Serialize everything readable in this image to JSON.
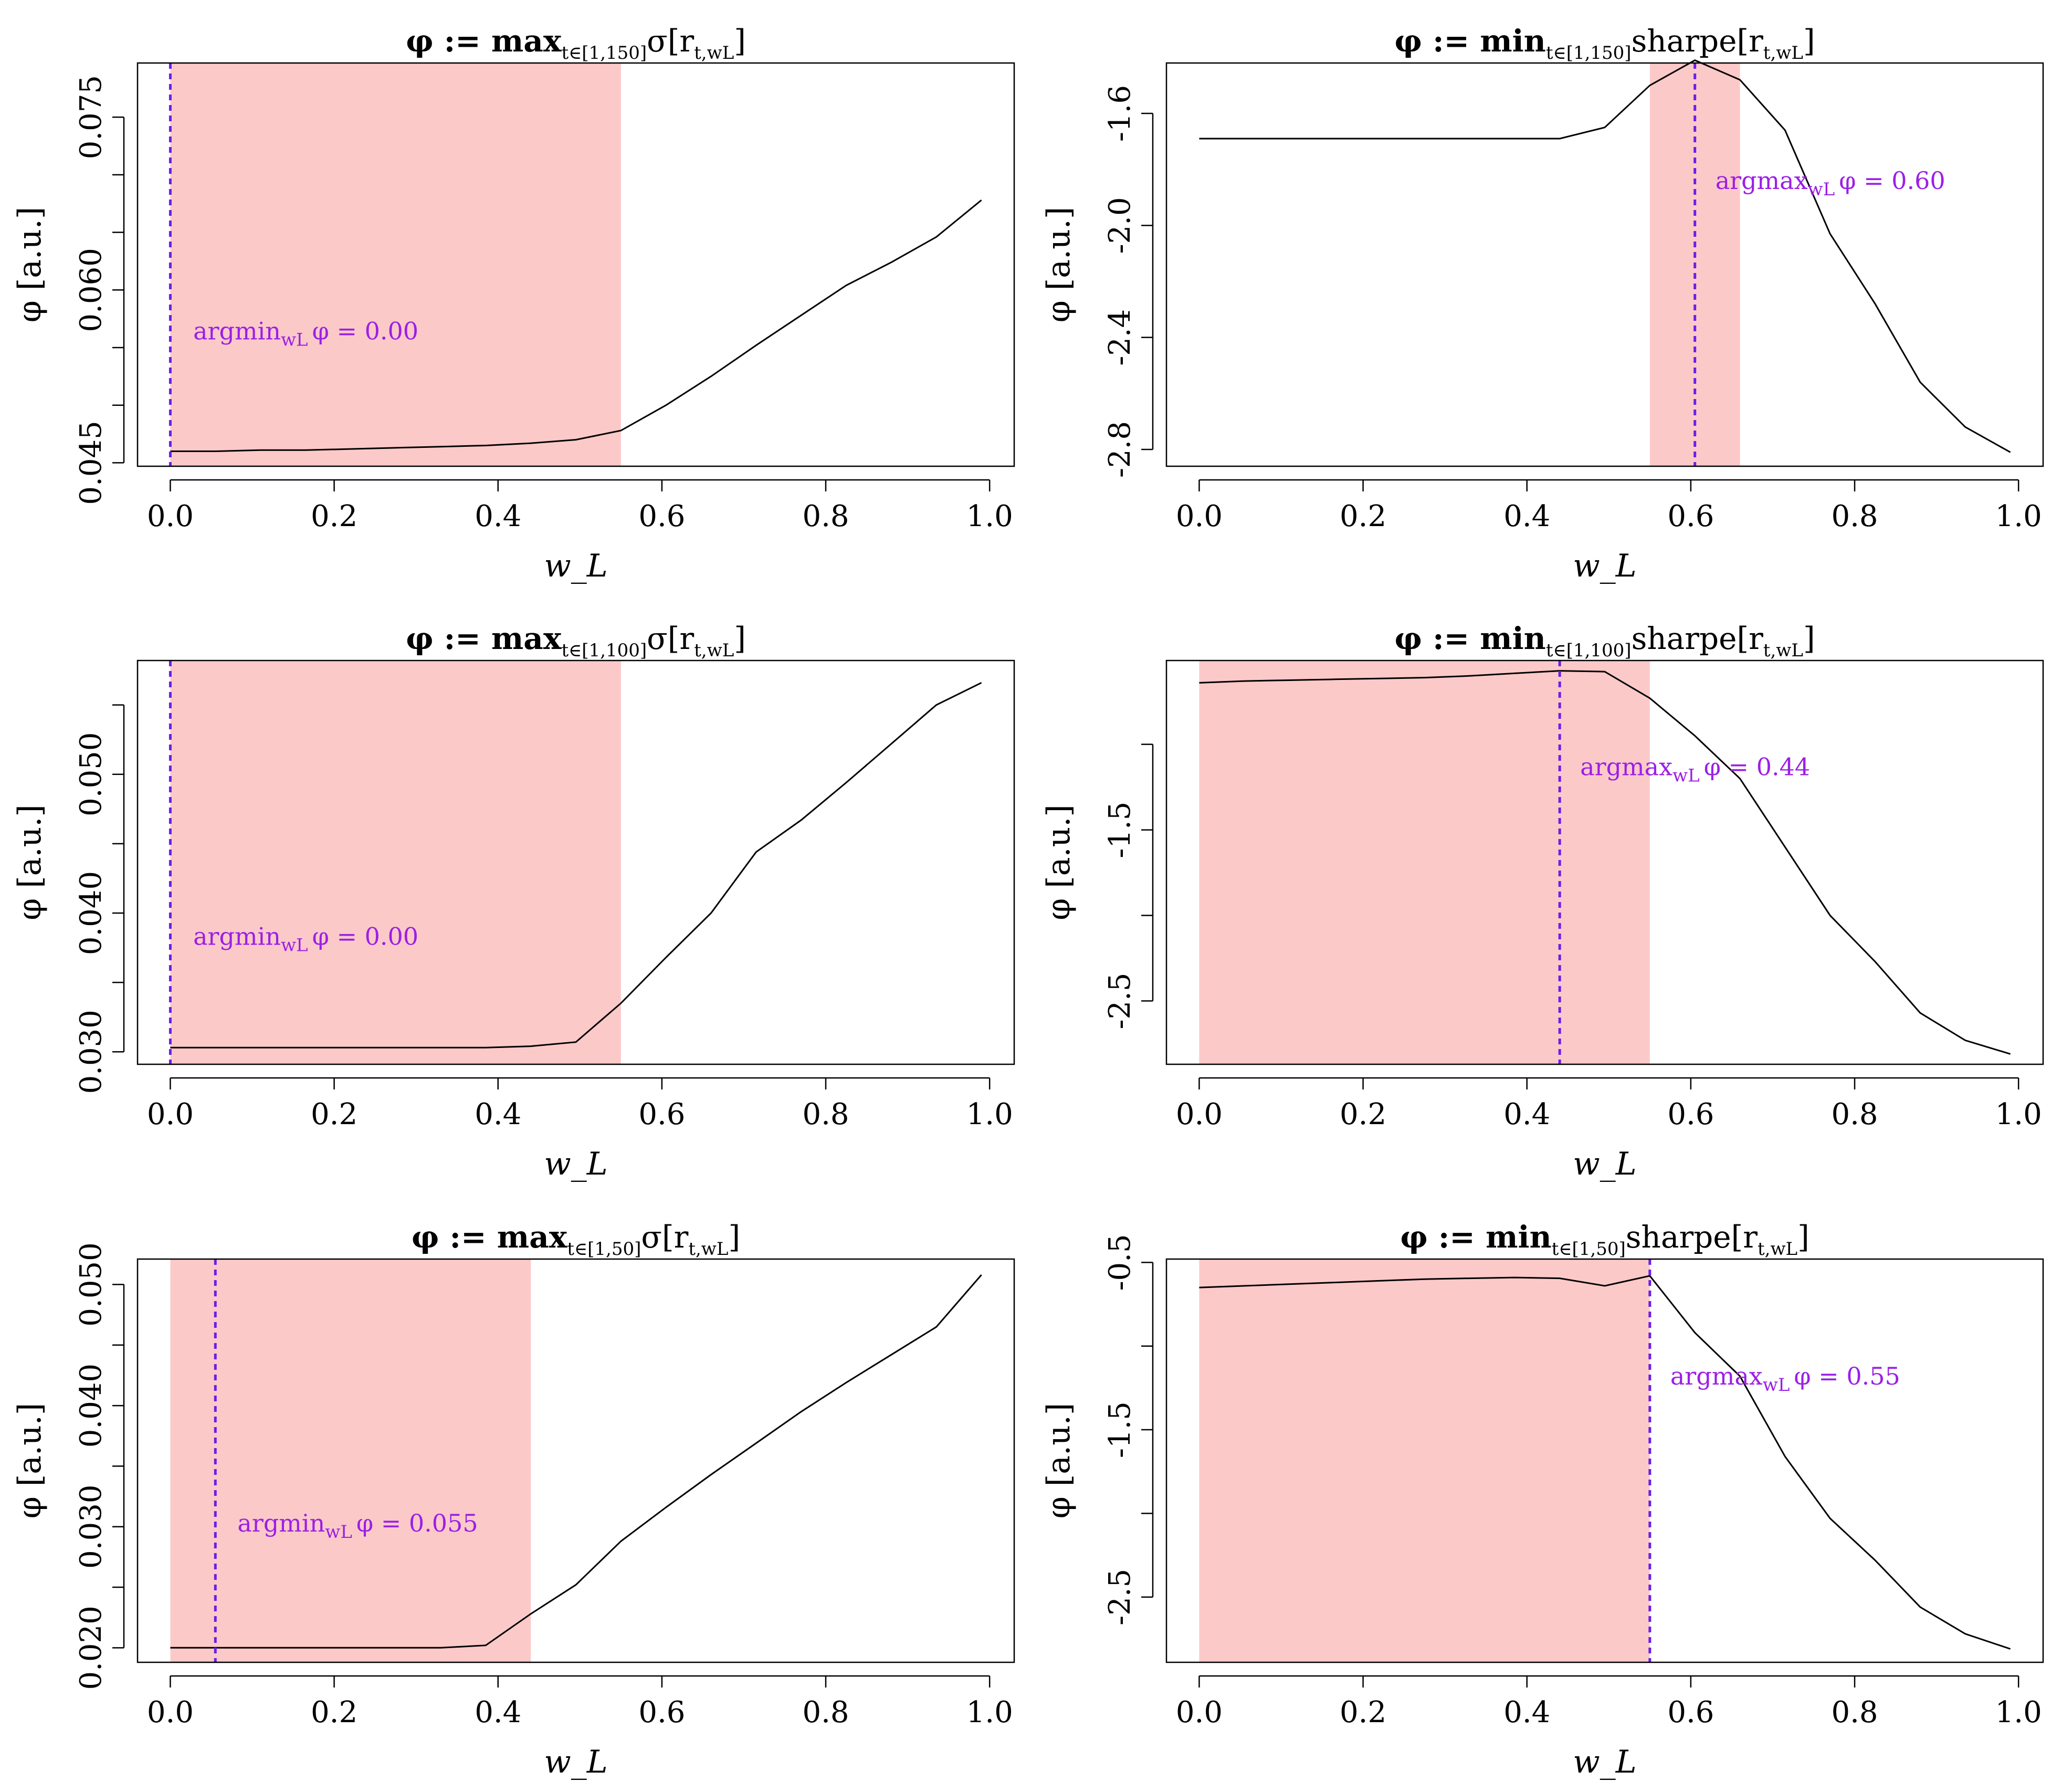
{
  "chart_data": [
    {
      "type": "line",
      "title": "φ := max",
      "title_sub": "t∈[1,150]",
      "title_tail": "σ[r",
      "title_tail_sub": "t,wL",
      "title_close": "]",
      "xlabel": "w_L",
      "ylabel": "φ [a.u.]",
      "xlim": [
        -0.04,
        1.03
      ],
      "ylim": [
        0.0447,
        0.0797
      ],
      "xticks": [
        0.0,
        0.2,
        0.4,
        0.6,
        0.8,
        1.0
      ],
      "xtick_labels": [
        "0.0",
        "0.2",
        "0.4",
        "0.6",
        "0.8",
        "1.0"
      ],
      "yticks": [
        0.045,
        0.05,
        0.055,
        0.06,
        0.065,
        0.07,
        0.075
      ],
      "ytick_labels": [
        "0.045",
        "",
        "",
        "0.060",
        "",
        "",
        "0.075"
      ],
      "x": [
        0.0,
        0.055,
        0.11,
        0.165,
        0.22,
        0.275,
        0.33,
        0.385,
        0.44,
        0.495,
        0.55,
        0.605,
        0.66,
        0.715,
        0.77,
        0.825,
        0.88,
        0.935,
        0.99
      ],
      "values": [
        0.046,
        0.046,
        0.0461,
        0.0461,
        0.0462,
        0.0463,
        0.0464,
        0.0465,
        0.0467,
        0.047,
        0.0478,
        0.05,
        0.0525,
        0.0552,
        0.0578,
        0.0604,
        0.0624,
        0.0646,
        0.0678
      ],
      "shaded_range": [
        0.0,
        0.55
      ],
      "marker_x": 0.0,
      "annotation": {
        "prefix": "argmin",
        "sub": "wL",
        "text": "φ = 0.00",
        "at": [
          0.028,
          0.0557
        ]
      }
    },
    {
      "type": "line",
      "title": "φ := min",
      "title_sub": "t∈[1,150]",
      "title_tail": "sharpe[r",
      "title_tail_sub": "t,wL",
      "title_close": "]",
      "xlabel": "w_L",
      "ylabel": "φ [a.u.]",
      "xlim": [
        -0.04,
        1.03
      ],
      "ylim": [
        -2.86,
        -1.42
      ],
      "xticks": [
        0.0,
        0.2,
        0.4,
        0.6,
        0.8,
        1.0
      ],
      "xtick_labels": [
        "0.0",
        "0.2",
        "0.4",
        "0.6",
        "0.8",
        "1.0"
      ],
      "yticks": [
        -2.8,
        -2.4,
        -2.0,
        -1.6
      ],
      "ytick_labels": [
        "-2.8",
        "-2.4",
        "-2.0",
        "-1.6"
      ],
      "x": [
        0.0,
        0.055,
        0.11,
        0.165,
        0.22,
        0.275,
        0.33,
        0.385,
        0.44,
        0.495,
        0.55,
        0.605,
        0.66,
        0.715,
        0.77,
        0.825,
        0.88,
        0.935,
        0.99
      ],
      "values": [
        -1.69,
        -1.69,
        -1.69,
        -1.69,
        -1.69,
        -1.69,
        -1.69,
        -1.69,
        -1.69,
        -1.65,
        -1.5,
        -1.41,
        -1.48,
        -1.66,
        -2.03,
        -2.28,
        -2.56,
        -2.72,
        -2.81
      ],
      "shaded_range": [
        0.55,
        0.66
      ],
      "marker_x": 0.605,
      "annotation": {
        "prefix": "argmax",
        "sub": "wL",
        "text": "φ = 0.60",
        "at": [
          0.63,
          -1.87
        ]
      }
    },
    {
      "type": "line",
      "title": "φ := max",
      "title_sub": "t∈[1,100]",
      "title_tail": "σ[r",
      "title_tail_sub": "t,wL",
      "title_close": "]",
      "xlabel": "w_L",
      "ylabel": "φ [a.u.]",
      "xlim": [
        -0.04,
        1.03
      ],
      "ylim": [
        0.0291,
        0.0582
      ],
      "xticks": [
        0.0,
        0.2,
        0.4,
        0.6,
        0.8,
        1.0
      ],
      "xtick_labels": [
        "0.0",
        "0.2",
        "0.4",
        "0.6",
        "0.8",
        "1.0"
      ],
      "yticks": [
        0.03,
        0.035,
        0.04,
        0.045,
        0.05,
        0.055
      ],
      "ytick_labels": [
        "0.030",
        "",
        "0.040",
        "",
        "0.050",
        ""
      ],
      "x": [
        0.0,
        0.055,
        0.11,
        0.165,
        0.22,
        0.275,
        0.33,
        0.385,
        0.44,
        0.495,
        0.55,
        0.605,
        0.66,
        0.715,
        0.77,
        0.825,
        0.88,
        0.935,
        0.99
      ],
      "values": [
        0.0303,
        0.0303,
        0.0303,
        0.0303,
        0.0303,
        0.0303,
        0.0303,
        0.0303,
        0.0304,
        0.0307,
        0.0335,
        0.0368,
        0.04,
        0.0444,
        0.0467,
        0.0494,
        0.0522,
        0.055,
        0.0566
      ],
      "shaded_range": [
        0.0,
        0.55
      ],
      "marker_x": 0.0,
      "annotation": {
        "prefix": "argmin",
        "sub": "wL",
        "text": "φ = 0.00",
        "at": [
          0.028,
          0.0377
        ]
      }
    },
    {
      "type": "line",
      "title": "φ := min",
      "title_sub": "t∈[1,100]",
      "title_tail": "sharpe[r",
      "title_tail_sub": "t,wL",
      "title_close": "]",
      "xlabel": "w_L",
      "ylabel": "φ [a.u.]",
      "xlim": [
        -0.04,
        1.03
      ],
      "ylim": [
        -2.87,
        -0.51
      ],
      "xticks": [
        0.0,
        0.2,
        0.4,
        0.6,
        0.8,
        1.0
      ],
      "xtick_labels": [
        "0.0",
        "0.2",
        "0.4",
        "0.6",
        "0.8",
        "1.0"
      ],
      "yticks": [
        -2.5,
        -2.0,
        -1.5,
        -1.0
      ],
      "ytick_labels": [
        "-2.5",
        "",
        "-1.5",
        ""
      ],
      "x": [
        0.0,
        0.055,
        0.11,
        0.165,
        0.22,
        0.275,
        0.33,
        0.385,
        0.44,
        0.495,
        0.55,
        0.605,
        0.66,
        0.715,
        0.77,
        0.825,
        0.88,
        0.935,
        0.99
      ],
      "values": [
        -0.64,
        -0.63,
        -0.625,
        -0.62,
        -0.615,
        -0.61,
        -0.6,
        -0.585,
        -0.57,
        -0.575,
        -0.73,
        -0.95,
        -1.2,
        -1.6,
        -2.0,
        -2.27,
        -2.57,
        -2.73,
        -2.81
      ],
      "shaded_range": [
        0.0,
        0.55
      ],
      "marker_x": 0.44,
      "annotation": {
        "prefix": "argmax",
        "sub": "wL",
        "text": "φ = 0.44",
        "at": [
          0.465,
          -1.18
        ]
      }
    },
    {
      "type": "line",
      "title": "φ := max",
      "title_sub": "t∈[1,50]",
      "title_tail": "σ[r",
      "title_tail_sub": "t,wL",
      "title_close": "]",
      "xlabel": "w_L",
      "ylabel": "φ [a.u.]",
      "xlim": [
        -0.04,
        1.03
      ],
      "ylim": [
        0.0188,
        0.0521
      ],
      "xticks": [
        0.0,
        0.2,
        0.4,
        0.6,
        0.8,
        1.0
      ],
      "xtick_labels": [
        "0.0",
        "0.2",
        "0.4",
        "0.6",
        "0.8",
        "1.0"
      ],
      "yticks": [
        0.02,
        0.025,
        0.03,
        0.035,
        0.04,
        0.045,
        0.05
      ],
      "ytick_labels": [
        "0.020",
        "",
        "0.030",
        "",
        "0.040",
        "",
        "0.050"
      ],
      "x": [
        0.0,
        0.055,
        0.11,
        0.165,
        0.22,
        0.275,
        0.33,
        0.385,
        0.44,
        0.495,
        0.55,
        0.605,
        0.66,
        0.715,
        0.77,
        0.825,
        0.88,
        0.935,
        0.99
      ],
      "values": [
        0.02,
        0.02,
        0.02,
        0.02,
        0.02,
        0.02,
        0.02,
        0.0202,
        0.0228,
        0.0252,
        0.0288,
        0.0316,
        0.0343,
        0.0369,
        0.0395,
        0.0419,
        0.0442,
        0.0465,
        0.0508
      ],
      "shaded_range": [
        0.0,
        0.44
      ],
      "marker_x": 0.055,
      "annotation": {
        "prefix": "argmin",
        "sub": "wL",
        "text": "φ = 0.055",
        "at": [
          0.082,
          0.0296
        ]
      }
    },
    {
      "type": "line",
      "title": "φ := min",
      "title_sub": "t∈[1,50]",
      "title_tail": "sharpe[r",
      "title_tail_sub": "t,wL",
      "title_close": "]",
      "xlabel": "w_L",
      "ylabel": "φ [a.u.]",
      "xlim": [
        -0.04,
        1.03
      ],
      "ylim": [
        -2.89,
        -0.48
      ],
      "xticks": [
        0.0,
        0.2,
        0.4,
        0.6,
        0.8,
        1.0
      ],
      "xtick_labels": [
        "0.0",
        "0.2",
        "0.4",
        "0.6",
        "0.8",
        "1.0"
      ],
      "yticks": [
        -2.5,
        -2.0,
        -1.5,
        -1.0,
        -0.5
      ],
      "ytick_labels": [
        "-2.5",
        "",
        "-1.5",
        "",
        "-0.5"
      ],
      "x": [
        0.0,
        0.055,
        0.11,
        0.165,
        0.22,
        0.275,
        0.33,
        0.385,
        0.44,
        0.495,
        0.55,
        0.605,
        0.66,
        0.715,
        0.77,
        0.825,
        0.88,
        0.935,
        0.99
      ],
      "values": [
        -0.65,
        -0.64,
        -0.63,
        -0.62,
        -0.61,
        -0.6,
        -0.595,
        -0.59,
        -0.595,
        -0.64,
        -0.58,
        -0.92,
        -1.18,
        -1.66,
        -2.03,
        -2.28,
        -2.56,
        -2.72,
        -2.81
      ],
      "shaded_range": [
        0.0,
        0.55
      ],
      "marker_x": 0.55,
      "annotation": {
        "prefix": "argmax",
        "sub": "wL",
        "text": "φ = 0.55",
        "at": [
          0.575,
          -1.23
        ]
      }
    }
  ],
  "colors": {
    "shade": "#fcc9c9",
    "line": "#000000",
    "marker": "#6a1fe8",
    "annotation": "#9b1fe6"
  }
}
